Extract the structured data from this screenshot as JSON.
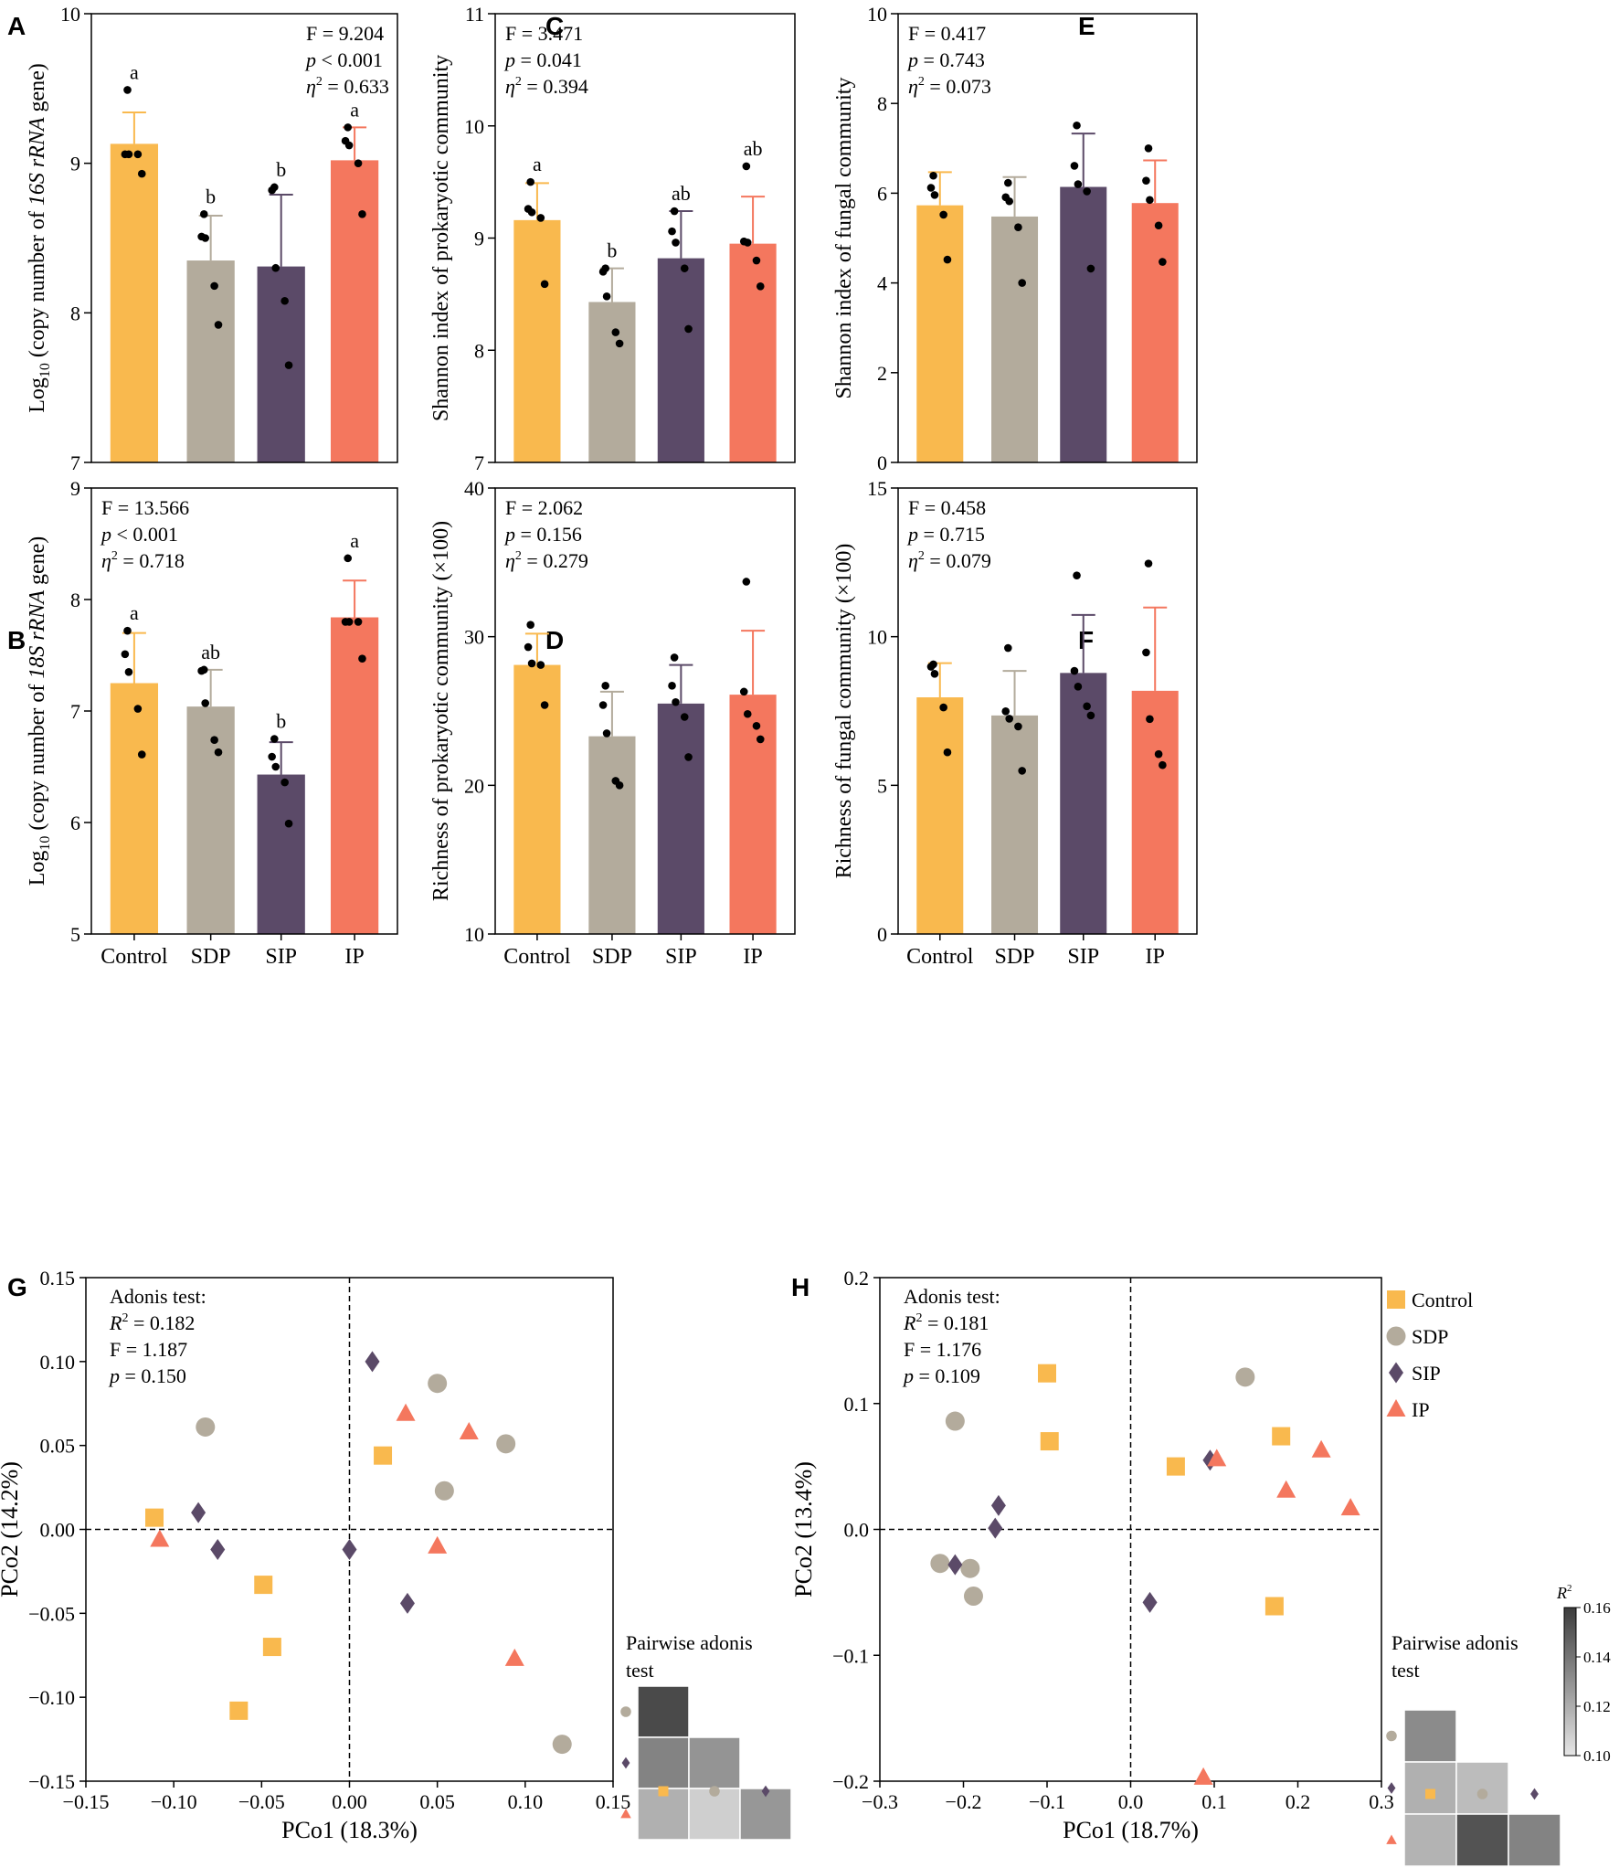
{
  "colors": {
    "Control": "#F9B94E",
    "SDP": "#B3AB9C",
    "SIP": "#5B4A68",
    "IP": "#F4775E"
  },
  "chart_data": [
    {
      "id": "A",
      "type": "bar",
      "title": "",
      "ylabel": {
        "pre": "Log",
        "sub": "10",
        "mid": " (copy number of ",
        "ital": "16S rRNA",
        "post": " gene)"
      },
      "ylim": [
        7,
        10
      ],
      "yticks": [
        7,
        8,
        9,
        10
      ],
      "xticks_shown": false,
      "categories": [
        "Control",
        "SDP",
        "SIP",
        "IP"
      ],
      "values": [
        9.13,
        8.35,
        8.31,
        9.02
      ],
      "errors": [
        0.21,
        0.3,
        0.48,
        0.22
      ],
      "letters": [
        "a",
        "b",
        "b",
        "a"
      ],
      "points": [
        [
          9.49,
          9.06,
          9.06,
          9.06,
          8.93
        ],
        [
          8.66,
          8.51,
          8.5,
          8.18,
          7.92
        ],
        [
          8.84,
          8.82,
          8.3,
          8.08,
          7.65
        ],
        [
          9.24,
          9.15,
          9.12,
          9.0,
          8.66
        ]
      ],
      "stats": [
        {
          "label": "F = ",
          "value": "9.204"
        },
        {
          "label": "p",
          "op": " < ",
          "value": "0.001"
        },
        {
          "label": "η",
          "sup": "2",
          "op": " = ",
          "value": "0.633"
        }
      ]
    },
    {
      "id": "B",
      "type": "bar",
      "ylabel": {
        "pre": "Log",
        "sub": "10",
        "mid": " (copy number of ",
        "ital": "18S rRNA",
        "post": " gene)"
      },
      "ylim": [
        5,
        9
      ],
      "yticks": [
        5,
        6,
        7,
        8,
        9
      ],
      "xticks_shown": true,
      "categories": [
        "Control",
        "SDP",
        "SIP",
        "IP"
      ],
      "values": [
        7.25,
        7.04,
        6.43,
        7.84
      ],
      "errors": [
        0.45,
        0.33,
        0.29,
        0.33
      ],
      "letters": [
        "a",
        "ab",
        "b",
        "a"
      ],
      "points": [
        [
          7.72,
          7.51,
          7.35,
          7.02,
          6.61
        ],
        [
          7.37,
          7.36,
          7.07,
          6.74,
          6.63
        ],
        [
          6.75,
          6.59,
          6.5,
          6.36,
          5.99
        ],
        [
          8.37,
          7.8,
          7.8,
          7.8,
          7.47
        ]
      ],
      "stats": [
        {
          "label": "F = ",
          "value": "13.566"
        },
        {
          "label": "p",
          "op": " < ",
          "value": "0.001"
        },
        {
          "label": "η",
          "sup": "2",
          "op": " = ",
          "value": "0.718"
        }
      ]
    },
    {
      "id": "C",
      "type": "bar",
      "ylabel": {
        "pre": "Shannon index of prokaryotic community"
      },
      "ylim": [
        7,
        11
      ],
      "yticks": [
        7,
        8,
        9,
        10,
        11
      ],
      "xticks_shown": false,
      "categories": [
        "Control",
        "SDP",
        "SIP",
        "IP"
      ],
      "values": [
        9.16,
        8.43,
        8.82,
        8.95
      ],
      "errors": [
        0.33,
        0.3,
        0.42,
        0.42
      ],
      "letters": [
        "a",
        "b",
        "ab",
        "ab"
      ],
      "points": [
        [
          9.5,
          9.26,
          9.23,
          9.18,
          8.59
        ],
        [
          8.73,
          8.7,
          8.48,
          8.16,
          8.06
        ],
        [
          9.24,
          9.06,
          8.96,
          8.73,
          8.19
        ],
        [
          9.64,
          8.97,
          8.96,
          8.8,
          8.57
        ]
      ],
      "stats": [
        {
          "label": "F = ",
          "value": "3.471"
        },
        {
          "label": "p",
          "op": " = ",
          "value": "0.041"
        },
        {
          "label": "η",
          "sup": "2",
          "op": " = ",
          "value": "0.394"
        }
      ]
    },
    {
      "id": "D",
      "type": "bar",
      "ylabel": {
        "pre": "Richness of prokaryotic community (×100)"
      },
      "ylim": [
        10,
        40
      ],
      "yticks": [
        10,
        20,
        30,
        40
      ],
      "xticks_shown": true,
      "categories": [
        "Control",
        "SDP",
        "SIP",
        "IP"
      ],
      "values": [
        28.1,
        23.3,
        25.5,
        26.1
      ],
      "errors": [
        2.1,
        3.0,
        2.6,
        4.3
      ],
      "letters": [],
      "points": [
        [
          30.8,
          29.3,
          28.2,
          28.1,
          25.4
        ],
        [
          26.7,
          25.4,
          23.5,
          20.3,
          20.0
        ],
        [
          28.6,
          26.7,
          25.6,
          24.6,
          21.9
        ],
        [
          33.7,
          26.3,
          24.8,
          24.0,
          23.1
        ]
      ],
      "stats": [
        {
          "label": "F = ",
          "value": "2.062"
        },
        {
          "label": "p",
          "op": " = ",
          "value": "0.156"
        },
        {
          "label": "η",
          "sup": "2",
          "op": " = ",
          "value": "0.279"
        }
      ]
    },
    {
      "id": "E",
      "type": "bar",
      "ylabel": {
        "pre": "Shannon index of fungal community"
      },
      "ylim": [
        0,
        10
      ],
      "yticks": [
        0,
        2,
        4,
        6,
        8,
        10
      ],
      "xticks_shown": false,
      "categories": [
        "Control",
        "SDP",
        "SIP",
        "IP"
      ],
      "values": [
        5.73,
        5.48,
        6.14,
        5.78
      ],
      "errors": [
        0.74,
        0.88,
        1.19,
        0.95
      ],
      "letters": [],
      "points": [
        [
          6.39,
          6.12,
          5.96,
          5.52,
          4.52
        ],
        [
          6.23,
          5.91,
          5.82,
          5.24,
          4.0
        ],
        [
          7.51,
          6.61,
          6.2,
          6.04,
          4.32
        ],
        [
          7.0,
          6.28,
          5.85,
          5.28,
          4.47
        ]
      ],
      "stats": [
        {
          "label": "F = ",
          "value": "0.417"
        },
        {
          "label": "p",
          "op": " = ",
          "value": "0.743"
        },
        {
          "label": "η",
          "sup": "2",
          "op": " = ",
          "value": "0.073"
        }
      ]
    },
    {
      "id": "F",
      "type": "bar",
      "ylabel": {
        "pre": "Richness of fungal community (×100)"
      },
      "ylim": [
        0,
        15
      ],
      "yticks": [
        0,
        5,
        10,
        15
      ],
      "xticks_shown": true,
      "categories": [
        "Control",
        "SDP",
        "SIP",
        "IP"
      ],
      "values": [
        7.96,
        7.35,
        8.78,
        8.18
      ],
      "errors": [
        1.15,
        1.5,
        1.95,
        2.8
      ],
      "letters": [],
      "points": [
        [
          9.07,
          8.99,
          8.75,
          7.62,
          6.11
        ],
        [
          9.62,
          7.49,
          7.24,
          6.98,
          5.49
        ],
        [
          12.06,
          8.85,
          8.32,
          7.66,
          7.35
        ],
        [
          12.46,
          9.47,
          7.23,
          6.05,
          5.68
        ]
      ],
      "stats": [
        {
          "label": "F = ",
          "value": "0.458"
        },
        {
          "label": "p",
          "op": " = ",
          "value": "0.715"
        },
        {
          "label": "η",
          "sup": "2",
          "op": " = ",
          "value": "0.079"
        }
      ]
    },
    {
      "id": "G",
      "type": "scatter",
      "xlabel": "PCo1 (18.3%)",
      "ylabel": "PCo2 (14.2%)",
      "xlim": [
        -0.15,
        0.15
      ],
      "ylim": [
        -0.15,
        0.15
      ],
      "xticks": [
        -0.15,
        -0.1,
        -0.05,
        0.0,
        0.05,
        0.1,
        0.15
      ],
      "yticks": [
        -0.15,
        -0.1,
        -0.05,
        0.0,
        0.05,
        0.1,
        0.15
      ],
      "xtick_labels": [
        "−0.15",
        "−0.10",
        "−0.05",
        "0.00",
        "0.05",
        "0.10",
        "0.15"
      ],
      "ytick_labels": [
        "−0.15",
        "−0.10",
        "−0.05",
        "0.00",
        "0.05",
        "0.10",
        "0.15"
      ],
      "adonis": {
        "title": "Adonis test:",
        "r2_value": "0.182",
        "f_label": "F = ",
        "f_value": "1.187",
        "p_value": "0.150",
        "r2_op": " = ",
        "p_op": " =  "
      },
      "series": [
        {
          "name": "Control",
          "marker": "square",
          "points": [
            [
              -0.111,
              0.007
            ],
            [
              -0.049,
              -0.033
            ],
            [
              -0.044,
              -0.07
            ],
            [
              -0.063,
              -0.108
            ],
            [
              0.019,
              0.044
            ]
          ]
        },
        {
          "name": "SDP",
          "marker": "circle",
          "points": [
            [
              -0.082,
              0.061
            ],
            [
              0.05,
              0.087
            ],
            [
              0.089,
              0.051
            ],
            [
              0.054,
              0.023
            ],
            [
              0.121,
              -0.128
            ]
          ]
        },
        {
          "name": "SIP",
          "marker": "diamond",
          "points": [
            [
              -0.086,
              0.01
            ],
            [
              -0.075,
              -0.012
            ],
            [
              0.013,
              0.1
            ],
            [
              0.0,
              -0.012
            ],
            [
              0.033,
              -0.044
            ]
          ]
        },
        {
          "name": "IP",
          "marker": "triangle",
          "points": [
            [
              -0.108,
              -0.006
            ],
            [
              0.032,
              0.069
            ],
            [
              0.068,
              0.058
            ],
            [
              0.05,
              -0.01
            ],
            [
              0.094,
              -0.077
            ]
          ]
        }
      ],
      "pairwise": {
        "title_line1": "Pairwise adonis",
        "title_line2": "test",
        "rows": [
          "SDP",
          "SIP",
          "IP"
        ],
        "cols": [
          "Control",
          "SDP",
          "SIP"
        ],
        "matrix": [
          [
            0.155,
            null,
            null
          ],
          [
            0.135,
            0.129,
            null
          ],
          [
            0.119,
            0.108,
            0.128
          ]
        ]
      }
    },
    {
      "id": "H",
      "type": "scatter",
      "xlabel": "PCo1 (18.7%)",
      "ylabel": "PCo2 (13.4%)",
      "xlim": [
        -0.3,
        0.3
      ],
      "ylim": [
        -0.2,
        0.2
      ],
      "xticks": [
        -0.3,
        -0.2,
        -0.1,
        0.0,
        0.1,
        0.2,
        0.3
      ],
      "yticks": [
        -0.2,
        -0.1,
        0.0,
        0.1,
        0.2
      ],
      "xtick_labels": [
        "−0.3",
        "−0.2",
        "−0.1",
        "0.0",
        "0.1",
        "0.2",
        "0.3"
      ],
      "ytick_labels": [
        "−0.2",
        "−0.1",
        "0.0",
        "0.1",
        "0.2"
      ],
      "adonis": {
        "title": "Adonis test:",
        "r2_value": "0.181",
        "f_label": "F = ",
        "f_value": "1.176",
        "p_value": "0.109",
        "r2_op": " = ",
        "p_op": " =  "
      },
      "series": [
        {
          "name": "Control",
          "marker": "square",
          "points": [
            [
              -0.1,
              0.124
            ],
            [
              -0.097,
              0.07
            ],
            [
              0.054,
              0.05
            ],
            [
              0.18,
              0.074
            ],
            [
              0.172,
              -0.061
            ]
          ]
        },
        {
          "name": "SDP",
          "marker": "circle",
          "points": [
            [
              -0.21,
              0.086
            ],
            [
              -0.228,
              -0.027
            ],
            [
              -0.192,
              -0.031
            ],
            [
              -0.188,
              -0.053
            ],
            [
              0.137,
              0.121
            ]
          ]
        },
        {
          "name": "SIP",
          "marker": "diamond",
          "points": [
            [
              -0.158,
              0.019
            ],
            [
              -0.162,
              0.001
            ],
            [
              -0.21,
              -0.028
            ],
            [
              0.095,
              0.055
            ],
            [
              0.023,
              -0.058
            ]
          ]
        },
        {
          "name": "IP",
          "marker": "triangle",
          "points": [
            [
              0.103,
              0.056
            ],
            [
              0.186,
              0.031
            ],
            [
              0.228,
              0.063
            ],
            [
              0.263,
              0.017
            ],
            [
              0.087,
              -0.197
            ]
          ]
        }
      ],
      "pairwise": {
        "title_line1": "Pairwise adonis",
        "title_line2": "test",
        "rows": [
          "SDP",
          "SIP",
          "IP"
        ],
        "cols": [
          "Control",
          "SDP",
          "SIP"
        ],
        "matrix": [
          [
            0.132,
            null,
            null
          ],
          [
            0.119,
            0.115,
            null
          ],
          [
            0.118,
            0.152,
            0.135
          ]
        ]
      },
      "legend": {
        "position": "right",
        "items": [
          "Control",
          "SDP",
          "SIP",
          "IP"
        ]
      },
      "colorbar": {
        "label": "R",
        "sup": "2",
        "range": [
          0.1,
          0.16
        ],
        "ticks": [
          "0.10",
          "0.12",
          "0.14",
          "0.16"
        ]
      }
    }
  ]
}
